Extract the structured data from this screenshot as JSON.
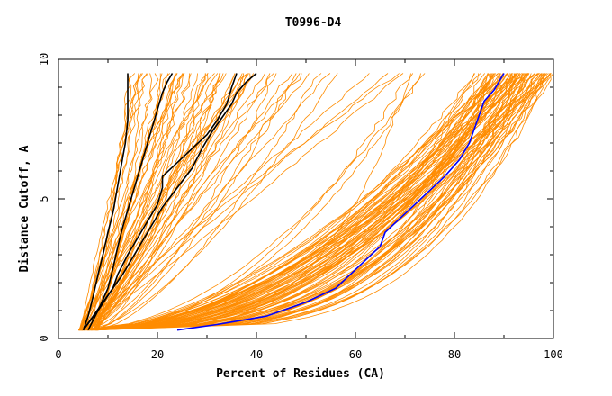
{
  "chart_data": {
    "type": "line",
    "title": "T0996-D4",
    "xlabel": "Percent of Residues (CA)",
    "ylabel": "Distance Cutoff, A",
    "xlim": [
      0,
      100
    ],
    "ylim": [
      0,
      10
    ],
    "xticks": [
      "0",
      "20",
      "40",
      "60",
      "80",
      "100"
    ],
    "yticks": [
      "0",
      "5",
      "10"
    ],
    "grid": false,
    "colors": {
      "background_models": "#ff8c00",
      "highlight_black": "#000000",
      "highlight_blue": "#0000ff"
    },
    "highlighted_series": [
      {
        "color": "#000000",
        "x": [
          5,
          6,
          7,
          8,
          9,
          10,
          11,
          11.5,
          12,
          12.5,
          13,
          13.5,
          14,
          14,
          14,
          14
        ],
        "y": [
          0.3,
          0.8,
          1.5,
          2.3,
          3.0,
          3.8,
          4.5,
          5.0,
          5.5,
          6.0,
          6.5,
          7.0,
          7.8,
          8.5,
          9.0,
          9.5
        ]
      },
      {
        "color": "#000000",
        "x": [
          6,
          8,
          10,
          11,
          12,
          13,
          14,
          15,
          16,
          17,
          18,
          19,
          20,
          21,
          22,
          23
        ],
        "y": [
          0.3,
          1.0,
          1.8,
          2.5,
          3.3,
          4.0,
          4.6,
          5.2,
          5.8,
          6.4,
          7.0,
          7.6,
          8.2,
          8.8,
          9.2,
          9.5
        ]
      },
      {
        "color": "#000000",
        "x": [
          5,
          8,
          11,
          12,
          14,
          16,
          18,
          20,
          21,
          21,
          24,
          27,
          30,
          32,
          34,
          35,
          36
        ],
        "y": [
          0.3,
          1.0,
          1.8,
          2.3,
          3.0,
          3.6,
          4.2,
          4.8,
          5.4,
          5.8,
          6.3,
          6.8,
          7.3,
          7.8,
          8.4,
          9.0,
          9.5
        ]
      },
      {
        "color": "#000000",
        "x": [
          5,
          7,
          9,
          11,
          13,
          15,
          17,
          19,
          21,
          24,
          27,
          29,
          31,
          33,
          35,
          36,
          38,
          40
        ],
        "y": [
          0.3,
          0.8,
          1.3,
          1.8,
          2.3,
          2.9,
          3.5,
          4.1,
          4.7,
          5.4,
          6.1,
          6.8,
          7.4,
          7.9,
          8.4,
          8.8,
          9.2,
          9.5
        ]
      },
      {
        "color": "#0000ff",
        "x": [
          24,
          32,
          42,
          50,
          56,
          59,
          62,
          65,
          66,
          69,
          72,
          75,
          78,
          81,
          83,
          84,
          85,
          86,
          88,
          89,
          90
        ],
        "y": [
          0.3,
          0.5,
          0.8,
          1.3,
          1.8,
          2.3,
          2.8,
          3.3,
          3.8,
          4.3,
          4.8,
          5.3,
          5.8,
          6.4,
          7.0,
          7.5,
          8.0,
          8.5,
          8.9,
          9.2,
          9.5
        ]
      }
    ]
  }
}
